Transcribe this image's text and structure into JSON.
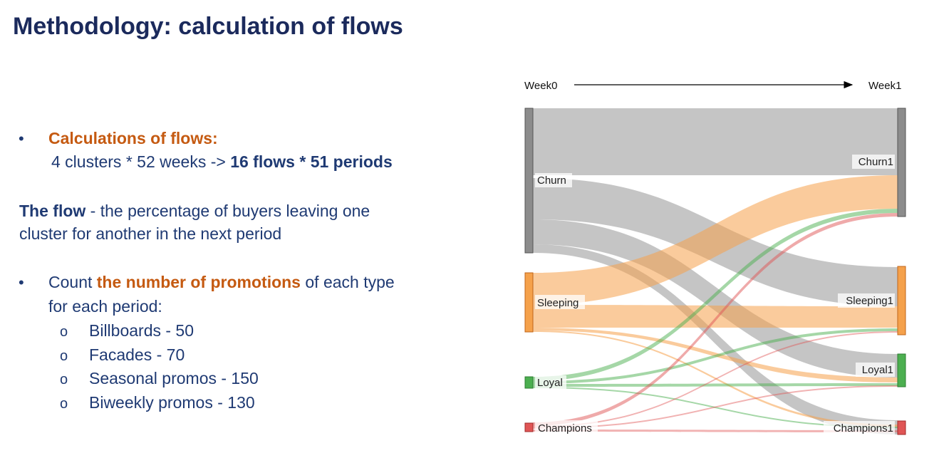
{
  "slide": {
    "title": "Methodology: calculation of flows",
    "bullet1_heading": "Calculations of flows:",
    "bullet1_line_a": "4 clusters * 52 weeks -> ",
    "bullet1_line_b": "16 flows * 51 periods",
    "flow_def_bold": "The flow",
    "flow_def_rest": " - the percentage of buyers leaving one",
    "flow_def_line2": "cluster for another in the next period",
    "bullet2_pre": "Count ",
    "bullet2_orange": "the number of promotions",
    "bullet2_post": " of each type",
    "bullet2_line2": "for each period:",
    "sub_bullet_symbol": "o",
    "bullet_symbol": "•",
    "promotions": [
      "Billboards - 50",
      "Facades - 70",
      "Seasonal promos - 150",
      "Biweekly promos - 130"
    ]
  },
  "sankey": {
    "axis_left": "Week0",
    "axis_right": "Week1",
    "colors": {
      "churn": "#8c8c8c",
      "sleeping": "#f5a14b",
      "loyal": "#4caf50",
      "champions": "#e05555"
    },
    "source_nodes": [
      "Churn",
      "Sleeping",
      "Loyal",
      "Champions"
    ],
    "target_nodes": [
      "Churn1",
      "Sleeping1",
      "Loyal1",
      "Champions1"
    ]
  }
}
